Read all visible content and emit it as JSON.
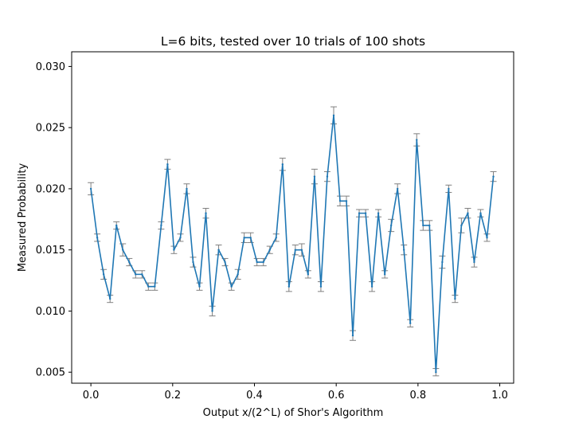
{
  "chart_data": {
    "type": "line",
    "title": "L=6 bits, tested over 10 trials of 100 shots",
    "xlabel": "Output x/(2^L) of Shor's Algorithm",
    "ylabel": "Measured Probability",
    "xlim": [
      -0.047,
      1.034
    ],
    "ylim": [
      0.0041,
      0.0312
    ],
    "xticks": [
      0.0,
      0.2,
      0.4,
      0.6,
      0.8,
      1.0
    ],
    "xtick_labels": [
      "0.0",
      "0.2",
      "0.4",
      "0.6",
      "0.8",
      "1.0"
    ],
    "yticks": [
      0.005,
      0.01,
      0.015,
      0.02,
      0.025,
      0.03
    ],
    "ytick_labels": [
      "0.005",
      "0.010",
      "0.015",
      "0.020",
      "0.025",
      "0.030"
    ],
    "grid": false,
    "line_color": "#1f77b4",
    "errorbar_color": "#808080",
    "series": [
      {
        "x": [
          0.0,
          0.0156,
          0.0312,
          0.0469,
          0.0625,
          0.0781,
          0.0938,
          0.1094,
          0.125,
          0.1406,
          0.1562,
          0.1719,
          0.1875,
          0.2031,
          0.2188,
          0.2344,
          0.25,
          0.2656,
          0.2812,
          0.2969,
          0.3125,
          0.3281,
          0.3438,
          0.3594,
          0.375,
          0.3906,
          0.4062,
          0.4219,
          0.4375,
          0.4531,
          0.4688,
          0.4844,
          0.5,
          0.5156,
          0.5312,
          0.5469,
          0.5625,
          0.5781,
          0.5938,
          0.6094,
          0.625,
          0.6406,
          0.6562,
          0.6719,
          0.6875,
          0.7031,
          0.7188,
          0.7344,
          0.75,
          0.7656,
          0.7812,
          0.7969,
          0.8125,
          0.8281,
          0.8438,
          0.8594,
          0.875,
          0.8906,
          0.9062,
          0.9219,
          0.9375,
          0.9531,
          0.9688,
          0.9844
        ],
        "y": [
          0.02,
          0.016,
          0.013,
          0.011,
          0.017,
          0.015,
          0.014,
          0.013,
          0.013,
          0.012,
          0.012,
          0.017,
          0.022,
          0.015,
          0.016,
          0.02,
          0.014,
          0.012,
          0.018,
          0.01,
          0.015,
          0.014,
          0.012,
          0.013,
          0.016,
          0.016,
          0.014,
          0.014,
          0.015,
          0.016,
          0.022,
          0.012,
          0.015,
          0.015,
          0.013,
          0.021,
          0.012,
          0.021,
          0.026,
          0.019,
          0.019,
          0.008,
          0.018,
          0.018,
          0.012,
          0.018,
          0.013,
          0.017,
          0.02,
          0.015,
          0.009,
          0.024,
          0.017,
          0.017,
          0.005,
          0.014,
          0.02,
          0.011,
          0.017,
          0.018,
          0.014,
          0.018,
          0.016,
          0.021
        ],
        "err": [
          0.0005,
          0.0003,
          0.0004,
          0.0003,
          0.0003,
          0.0005,
          0.0003,
          0.0003,
          0.0003,
          0.0003,
          0.0003,
          0.0003,
          0.0004,
          0.0003,
          0.0003,
          0.0004,
          0.0004,
          0.0003,
          0.0004,
          0.0004,
          0.0004,
          0.0003,
          0.0003,
          0.0004,
          0.0004,
          0.0004,
          0.0003,
          0.0003,
          0.0003,
          0.0003,
          0.0005,
          0.0004,
          0.0004,
          0.0005,
          0.0003,
          0.0006,
          0.0004,
          0.0004,
          0.0007,
          0.0004,
          0.0004,
          0.0004,
          0.0003,
          0.0003,
          0.0004,
          0.0003,
          0.0003,
          0.0005,
          0.0004,
          0.0004,
          0.0003,
          0.0005,
          0.0004,
          0.0004,
          0.0003,
          0.0005,
          0.0003,
          0.0003,
          0.0006,
          0.0004,
          0.0004,
          0.0003,
          0.0003,
          0.0004
        ]
      }
    ]
  }
}
